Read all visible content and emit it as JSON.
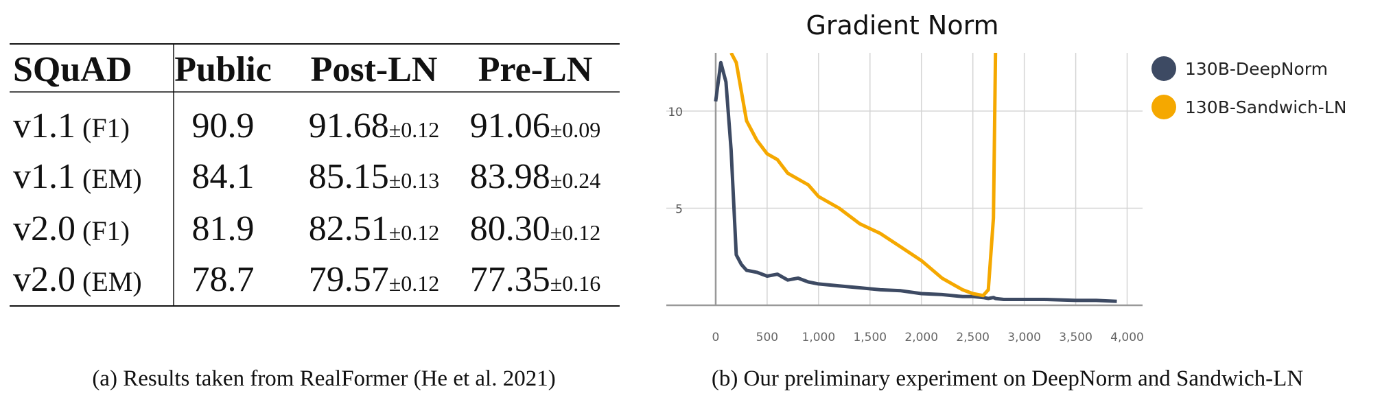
{
  "table": {
    "header": [
      "SQuAD",
      "Public",
      "Post-LN",
      "Pre-LN"
    ],
    "rows": [
      {
        "version": "v1.1",
        "metric": "(F1)",
        "cells": [
          {
            "mean": "90.9"
          },
          {
            "mean": "91.68",
            "pm": "±0.12"
          },
          {
            "mean": "91.06",
            "pm": "±0.09"
          }
        ]
      },
      {
        "version": "v1.1",
        "metric": "(EM)",
        "cells": [
          {
            "mean": "84.1"
          },
          {
            "mean": "85.15",
            "pm": "±0.13"
          },
          {
            "mean": "83.98",
            "pm": "±0.24"
          }
        ]
      },
      {
        "version": "v2.0",
        "metric": "(F1)",
        "cells": [
          {
            "mean": "81.9"
          },
          {
            "mean": "82.51",
            "pm": "±0.12"
          },
          {
            "mean": "80.30",
            "pm": "±0.12"
          }
        ]
      },
      {
        "version": "v2.0",
        "metric": "(EM)",
        "cells": [
          {
            "mean": "78.7"
          },
          {
            "mean": "79.57",
            "pm": "±0.12"
          },
          {
            "mean": "77.35",
            "pm": "±0.16"
          }
        ]
      }
    ]
  },
  "caption_a": "(a) Results taken from RealFormer (He et al. 2021)",
  "caption_b": "(b) Our preliminary experiment on DeepNorm and Sandwich-LN",
  "chart_data": {
    "type": "line",
    "title": "Gradient Norm",
    "x": [
      0,
      50,
      100,
      150,
      200,
      250,
      300,
      400,
      500,
      600,
      700,
      800,
      900,
      1000,
      1200,
      1400,
      1600,
      1800,
      2000,
      2200,
      2400,
      2500,
      2600,
      2650,
      2700,
      2720,
      2800,
      3000,
      3200,
      3500,
      3700,
      3900
    ],
    "series": [
      {
        "name": "130B-DeepNorm",
        "color": "#3d4a63",
        "values": [
          10.5,
          12.5,
          11.5,
          8,
          2.6,
          2.1,
          1.8,
          1.7,
          1.5,
          1.6,
          1.3,
          1.4,
          1.2,
          1.1,
          1.0,
          0.9,
          0.8,
          0.75,
          0.6,
          0.55,
          0.45,
          0.45,
          0.4,
          0.35,
          0.4,
          0.35,
          0.3,
          0.3,
          0.3,
          0.25,
          0.25,
          0.2
        ]
      },
      {
        "name": "130B-Sandwich-LN",
        "color": "#f5a800",
        "values": [
          null,
          null,
          null,
          13,
          12.5,
          11,
          9.5,
          8.5,
          7.8,
          7.5,
          6.8,
          6.5,
          6.2,
          5.6,
          5.0,
          4.2,
          3.7,
          3.0,
          2.3,
          1.4,
          0.8,
          0.6,
          0.5,
          0.8,
          4.5,
          13,
          null,
          null,
          null,
          null,
          null,
          null
        ]
      }
    ],
    "xlim": [
      -480,
      4150
    ],
    "ylim": [
      0,
      13
    ],
    "xticks": [
      0,
      500,
      {
        "value": 1000,
        "label": "1,000"
      },
      {
        "value": 1500,
        "label": "1,500"
      },
      {
        "value": 2000,
        "label": "2,000"
      },
      {
        "value": 2500,
        "label": "2,500"
      },
      {
        "value": 3000,
        "label": "3,000"
      },
      {
        "value": 3500,
        "label": "3,500"
      },
      {
        "value": 4000,
        "label": "4,000"
      }
    ],
    "yticks": [
      5,
      10
    ],
    "grid": true,
    "legend": "right"
  }
}
